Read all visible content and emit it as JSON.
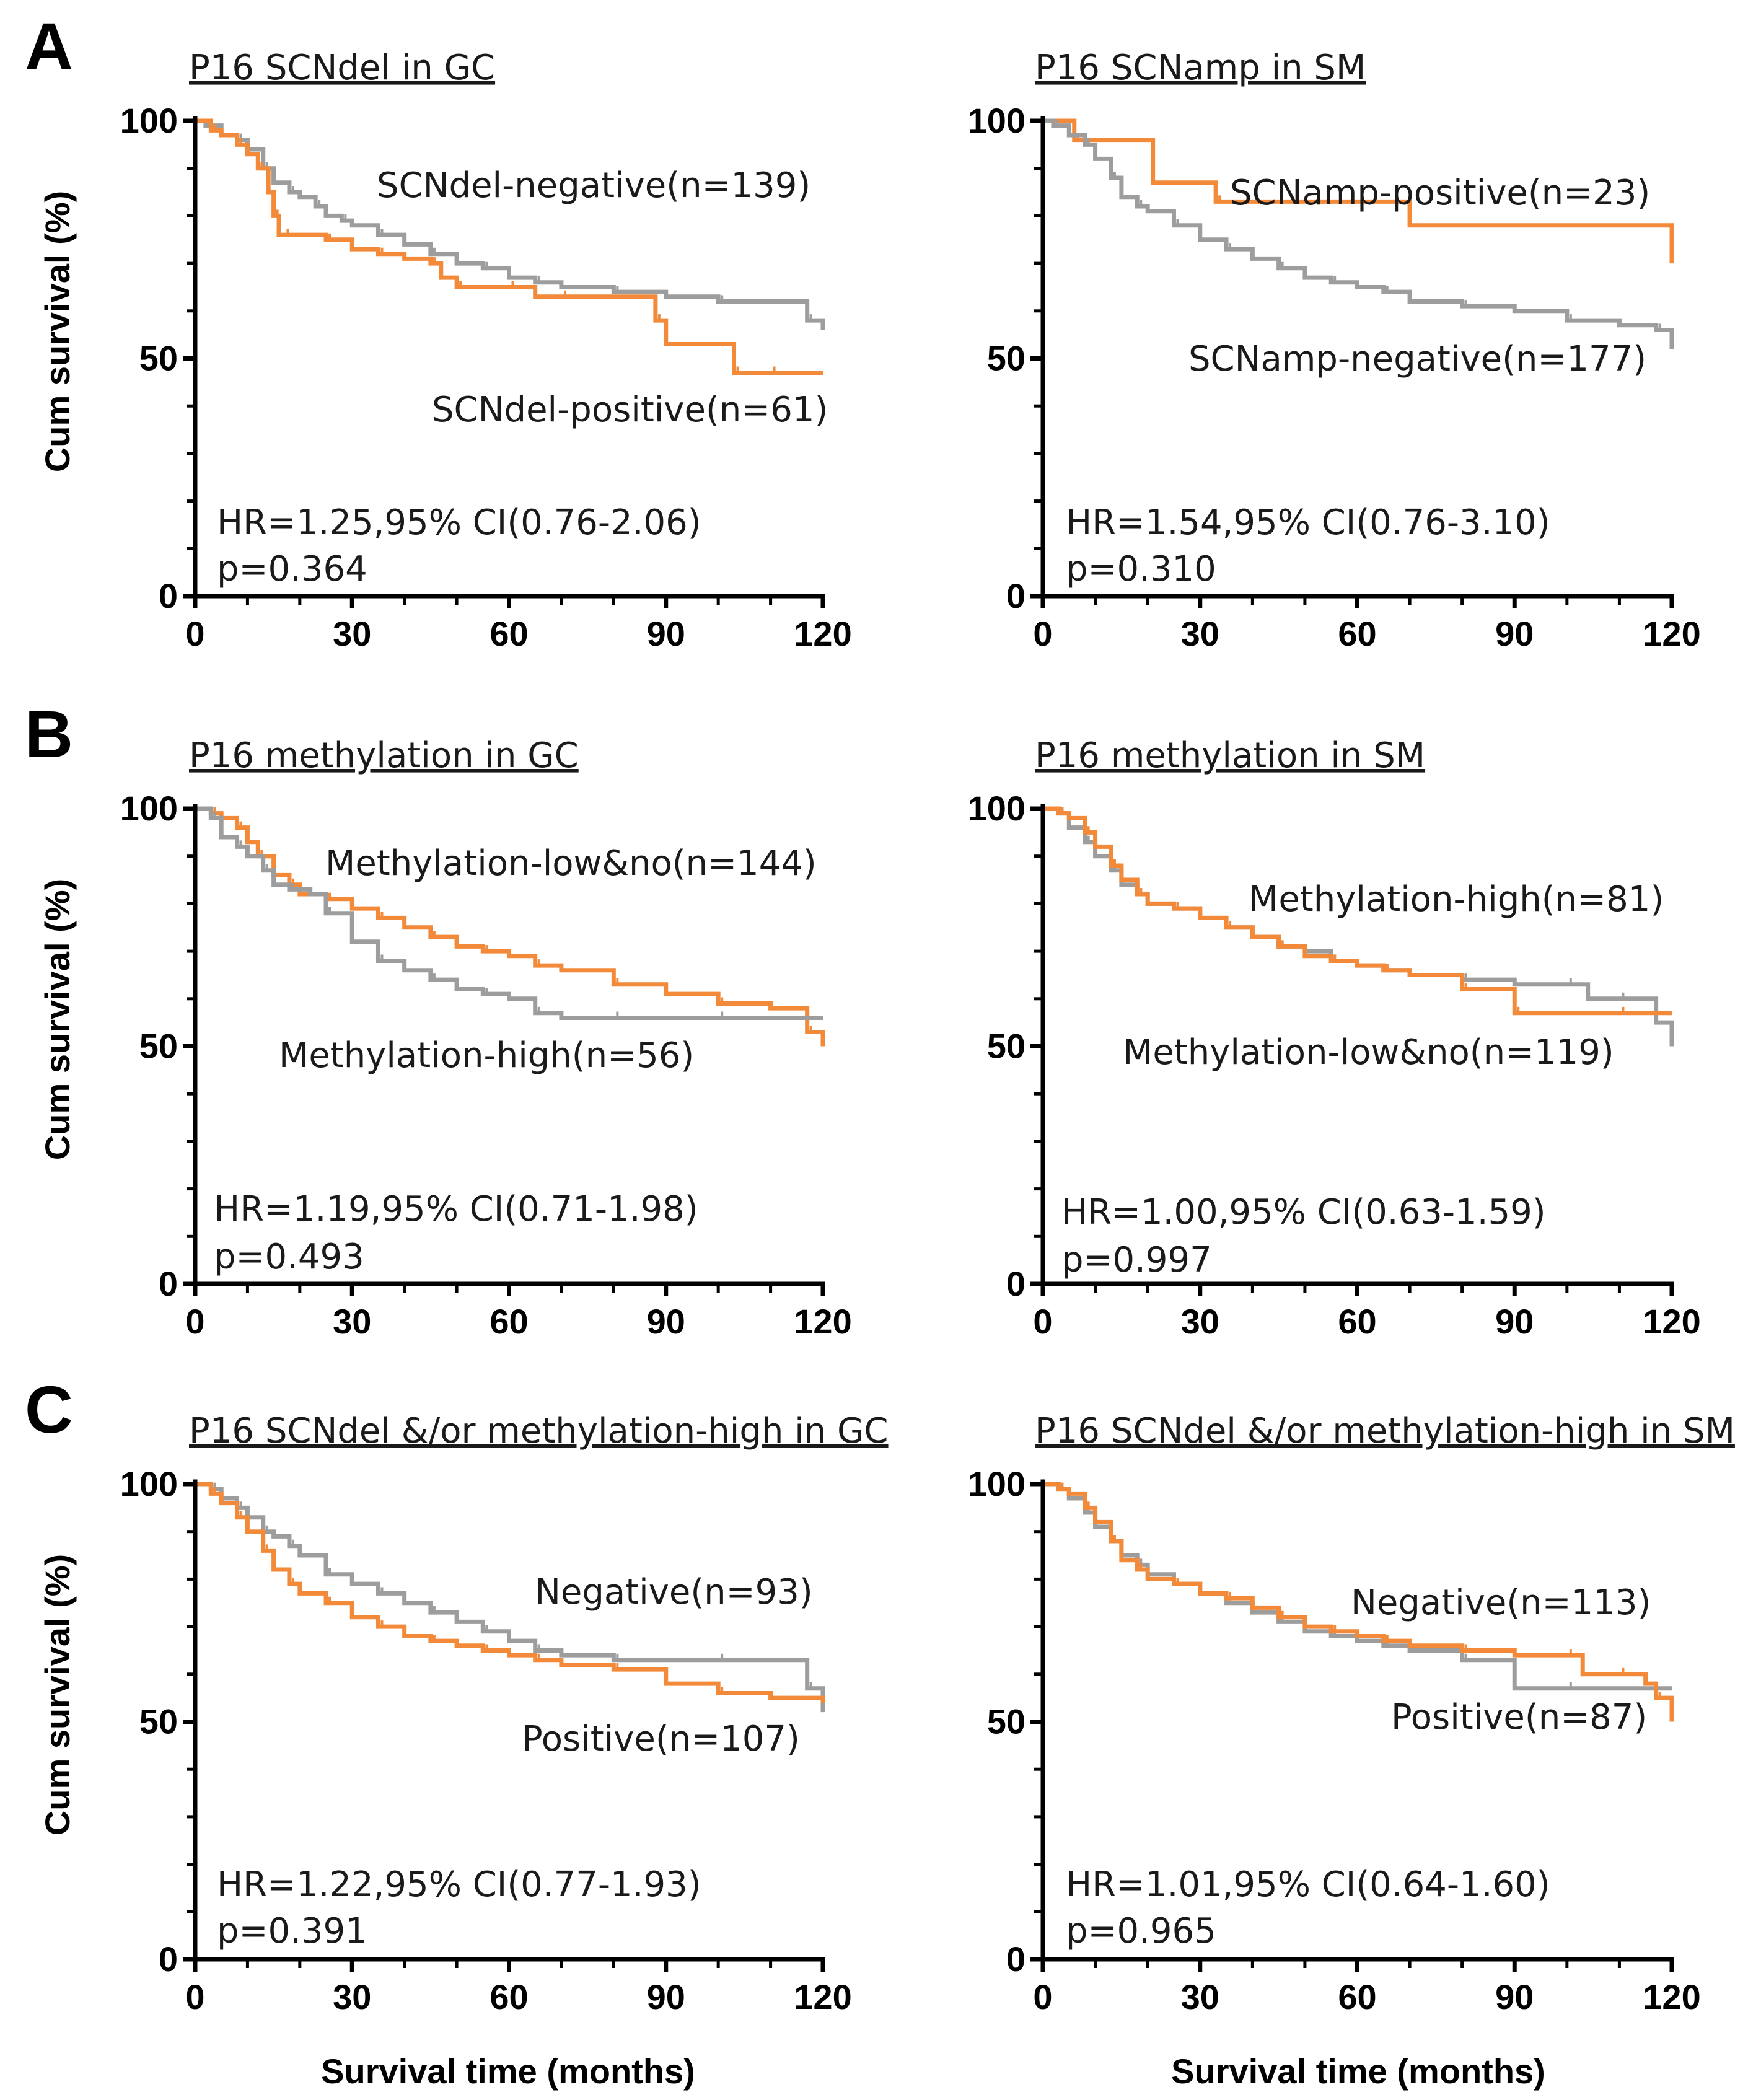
{
  "colors": {
    "gray": "#9d9d9d",
    "orange": "#f28a3a",
    "axis": "#000000"
  },
  "figure": {
    "rows": [
      {
        "letter": "A"
      },
      {
        "letter": "B"
      },
      {
        "letter": "C"
      }
    ],
    "ylabel": "Cum survival (%)",
    "xlabel": "Survival time (months)"
  },
  "chart_data": [
    {
      "type": "line",
      "title": "P16 SCNdel in GC",
      "xlabel": "",
      "ylabel": "Cum survival (%)",
      "xlim": [
        0,
        120
      ],
      "ylim": [
        0,
        100
      ],
      "xticks": [
        "0",
        "30",
        "60",
        "90",
        "120"
      ],
      "yticks": [
        "0",
        "50",
        "100"
      ],
      "grid": false,
      "hr_text": "HR=1.25,95% CI(0.76-2.06)",
      "p_text": "p=0.364",
      "series": [
        {
          "name": "SCNdel-negative(n=139)",
          "color": "gray",
          "x": [
            0,
            2,
            5,
            8,
            10,
            13,
            15,
            18,
            20,
            23,
            25,
            28,
            30,
            35,
            40,
            45,
            50,
            55,
            60,
            65,
            70,
            80,
            90,
            100,
            110,
            117,
            120
          ],
          "y": [
            100,
            99,
            97,
            96,
            94,
            90,
            87,
            85,
            84,
            82,
            80,
            79,
            78,
            76,
            74,
            72,
            70,
            69,
            67,
            66,
            65,
            64,
            63,
            62,
            62,
            58,
            56
          ]
        },
        {
          "name": "SCNdel-positive(n=61)",
          "color": "orange",
          "x": [
            0,
            3,
            5,
            8,
            10,
            12,
            14,
            15,
            16,
            17,
            20,
            25,
            30,
            35,
            40,
            45,
            47,
            50,
            55,
            60,
            65,
            70,
            85,
            88,
            90,
            103,
            105,
            110,
            120
          ],
          "y": [
            100,
            98,
            97,
            95,
            93,
            90,
            85,
            80,
            76,
            76,
            76,
            75,
            73,
            72,
            71,
            70,
            67,
            65,
            65,
            65,
            63,
            63,
            63,
            58,
            53,
            47,
            47,
            47,
            47
          ]
        }
      ]
    },
    {
      "type": "line",
      "title": "P16 SCNamp in SM",
      "xlabel": "",
      "ylabel": "",
      "xlim": [
        0,
        120
      ],
      "ylim": [
        0,
        100
      ],
      "xticks": [
        "0",
        "30",
        "60",
        "90",
        "120"
      ],
      "yticks": [
        "0",
        "50",
        "100"
      ],
      "grid": false,
      "hr_text": "HR=1.54,95% CI(0.76-3.10)",
      "p_text": "p=0.310",
      "series": [
        {
          "name": "SCNamp-positive(n=23)",
          "color": "orange",
          "x": [
            0,
            6,
            21,
            33,
            70,
            120
          ],
          "y": [
            100,
            96,
            87,
            83,
            78,
            70
          ]
        },
        {
          "name": "SCNamp-negative(n=177)",
          "color": "gray",
          "x": [
            0,
            2,
            5,
            8,
            10,
            13,
            15,
            18,
            20,
            25,
            30,
            35,
            40,
            45,
            50,
            55,
            60,
            65,
            70,
            80,
            90,
            100,
            110,
            117,
            120
          ],
          "y": [
            100,
            99,
            97,
            95,
            92,
            88,
            84,
            82,
            81,
            78,
            75,
            73,
            71,
            69,
            67,
            66,
            65,
            64,
            62,
            61,
            60,
            58,
            57,
            56,
            52
          ]
        }
      ]
    },
    {
      "type": "line",
      "title": "P16 methylation in GC",
      "xlabel": "",
      "ylabel": "Cum survival (%)",
      "xlim": [
        0,
        120
      ],
      "ylim": [
        0,
        100
      ],
      "xticks": [
        "0",
        "30",
        "60",
        "90",
        "120"
      ],
      "yticks": [
        "0",
        "50",
        "100"
      ],
      "grid": false,
      "hr_text": "HR=1.19,95% CI(0.71-1.98)",
      "p_text": "p=0.493",
      "series": [
        {
          "name": "Methylation-low&no(n=144)",
          "color": "orange",
          "x": [
            0,
            3,
            5,
            8,
            10,
            12,
            15,
            18,
            20,
            25,
            30,
            35,
            40,
            45,
            50,
            55,
            60,
            65,
            70,
            80,
            90,
            100,
            110,
            117,
            120
          ],
          "y": [
            100,
            99,
            98,
            96,
            93,
            90,
            86,
            84,
            82,
            81,
            79,
            77,
            75,
            73,
            71,
            70,
            69,
            67,
            66,
            63,
            61,
            59,
            58,
            53,
            50
          ]
        },
        {
          "name": "Methylation-high(n=56)",
          "color": "gray",
          "x": [
            0,
            3,
            5,
            8,
            10,
            13,
            15,
            18,
            22,
            25,
            30,
            35,
            40,
            45,
            50,
            55,
            60,
            65,
            70,
            80,
            90,
            100,
            120
          ],
          "y": [
            100,
            98,
            94,
            92,
            90,
            87,
            84,
            83,
            82,
            78,
            72,
            68,
            66,
            64,
            62,
            61,
            60,
            57,
            56,
            56,
            56,
            56,
            56
          ]
        }
      ]
    },
    {
      "type": "line",
      "title": "P16 methylation in SM",
      "xlabel": "",
      "ylabel": "",
      "xlim": [
        0,
        120
      ],
      "ylim": [
        0,
        100
      ],
      "xticks": [
        "0",
        "30",
        "60",
        "90",
        "120"
      ],
      "yticks": [
        "0",
        "50",
        "100"
      ],
      "grid": false,
      "hr_text": "HR=1.00,95% CI(0.63-1.59)",
      "p_text": "p=0.997",
      "series": [
        {
          "name": "Methylation-high(n=81)",
          "color": "gray",
          "x": [
            0,
            3,
            5,
            8,
            10,
            13,
            15,
            18,
            20,
            25,
            30,
            35,
            40,
            45,
            50,
            55,
            60,
            65,
            70,
            80,
            90,
            100,
            104,
            110,
            117,
            120
          ],
          "y": [
            100,
            99,
            96,
            93,
            90,
            87,
            84,
            82,
            80,
            79,
            77,
            75,
            73,
            71,
            70,
            68,
            67,
            66,
            65,
            64,
            63,
            63,
            60,
            60,
            55,
            50
          ]
        },
        {
          "name": "Methylation-low&no(n=119)",
          "color": "orange",
          "x": [
            0,
            3,
            5,
            8,
            10,
            13,
            15,
            18,
            20,
            25,
            30,
            35,
            40,
            45,
            50,
            55,
            60,
            65,
            70,
            80,
            88,
            90,
            100,
            110,
            120
          ],
          "y": [
            100,
            99,
            98,
            95,
            92,
            88,
            85,
            82,
            80,
            79,
            77,
            75,
            73,
            71,
            69,
            68,
            67,
            66,
            65,
            62,
            62,
            57,
            57,
            57,
            57
          ]
        }
      ]
    },
    {
      "type": "line",
      "title": "P16 SCNdel &/or methylation-high in GC",
      "xlabel": "Survival time (months)",
      "ylabel": "Cum survival (%)",
      "xlim": [
        0,
        120
      ],
      "ylim": [
        0,
        100
      ],
      "xticks": [
        "0",
        "30",
        "60",
        "90",
        "120"
      ],
      "yticks": [
        "0",
        "50",
        "100"
      ],
      "grid": false,
      "hr_text": "HR=1.22,95% CI(0.77-1.93)",
      "p_text": "p=0.391",
      "series": [
        {
          "name": "Negative(n=93)",
          "color": "gray",
          "x": [
            0,
            3,
            5,
            8,
            10,
            13,
            15,
            18,
            20,
            25,
            30,
            35,
            40,
            45,
            50,
            55,
            60,
            65,
            70,
            80,
            90,
            100,
            110,
            117,
            120
          ],
          "y": [
            100,
            99,
            97,
            95,
            93,
            90,
            89,
            87,
            85,
            81,
            79,
            77,
            75,
            73,
            71,
            69,
            67,
            65,
            64,
            63,
            63,
            63,
            63,
            57,
            52
          ]
        },
        {
          "name": "Positive(n=107)",
          "color": "orange",
          "x": [
            0,
            3,
            5,
            8,
            10,
            13,
            15,
            18,
            20,
            25,
            30,
            35,
            40,
            45,
            50,
            55,
            60,
            65,
            70,
            80,
            90,
            100,
            110,
            120
          ],
          "y": [
            100,
            98,
            96,
            93,
            90,
            86,
            82,
            79,
            77,
            75,
            72,
            70,
            68,
            67,
            66,
            65,
            64,
            63,
            62,
            61,
            58,
            56,
            55,
            54
          ]
        }
      ]
    },
    {
      "type": "line",
      "title": "P16 SCNdel &/or methylation-high in SM",
      "xlabel": "Survival time (months)",
      "ylabel": "",
      "xlim": [
        0,
        120
      ],
      "ylim": [
        0,
        100
      ],
      "xticks": [
        "0",
        "30",
        "60",
        "90",
        "120"
      ],
      "yticks": [
        "0",
        "50",
        "100"
      ],
      "grid": false,
      "hr_text": "HR=1.01,95% CI(0.64-1.60)",
      "p_text": "p=0.965",
      "series": [
        {
          "name": "Negative(n=113)",
          "color": "gray",
          "x": [
            0,
            3,
            5,
            8,
            10,
            13,
            15,
            18,
            20,
            25,
            30,
            35,
            40,
            45,
            50,
            55,
            60,
            65,
            70,
            80,
            90,
            100,
            110,
            120
          ],
          "y": [
            100,
            99,
            97,
            94,
            91,
            88,
            85,
            83,
            81,
            79,
            77,
            75,
            73,
            71,
            69,
            68,
            67,
            66,
            65,
            63,
            57,
            57,
            57,
            57
          ]
        },
        {
          "name": "Positive(n=87)",
          "color": "orange",
          "x": [
            0,
            3,
            5,
            8,
            10,
            13,
            15,
            18,
            20,
            25,
            30,
            35,
            40,
            45,
            50,
            55,
            60,
            65,
            70,
            80,
            90,
            100,
            103,
            110,
            115,
            117,
            120
          ],
          "y": [
            100,
            99,
            98,
            95,
            92,
            88,
            84,
            82,
            80,
            79,
            77,
            76,
            74,
            72,
            70,
            69,
            68,
            67,
            66,
            65,
            64,
            64,
            60,
            60,
            58,
            55,
            50
          ]
        }
      ]
    }
  ]
}
